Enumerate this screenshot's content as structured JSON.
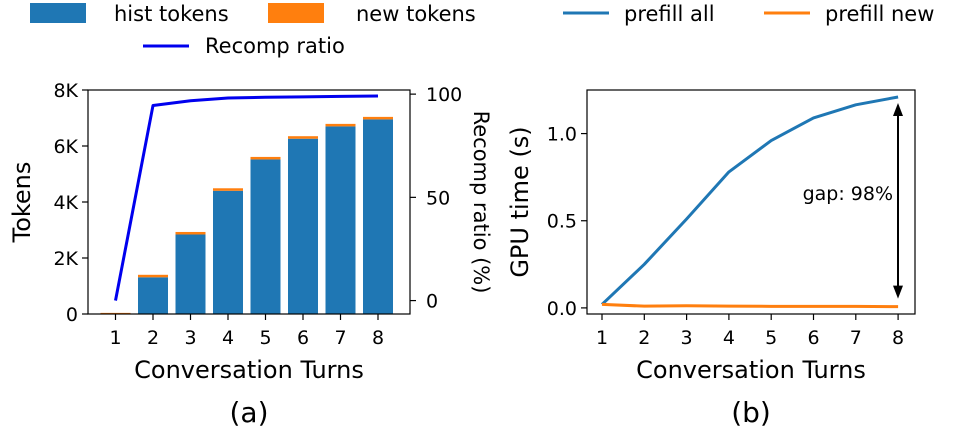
{
  "chart_data": [
    {
      "type": "bar",
      "panel_label": "(a)",
      "xlabel": "Conversation Turns",
      "ylabel": "Tokens",
      "y2label": "Recomp ratio (%)",
      "categories": [
        "1",
        "2",
        "3",
        "4",
        "5",
        "6",
        "7",
        "8"
      ],
      "ylim": [
        0,
        8000
      ],
      "yticks": [
        0,
        2000,
        4000,
        6000,
        8000
      ],
      "ytick_labels": [
        "0",
        "2K",
        "4K",
        "6K",
        "8K"
      ],
      "y2lim": [
        -6.5,
        102
      ],
      "y2ticks": [
        0,
        50,
        100
      ],
      "y2tick_labels": [
        "0",
        "50",
        "100"
      ],
      "legend_position": "top",
      "series": [
        {
          "name": "hist tokens",
          "kind": "bar",
          "color": "#1f77b4",
          "values": [
            0,
            1310,
            2840,
            4400,
            5520,
            6260,
            6700,
            6950
          ]
        },
        {
          "name": "new tokens",
          "kind": "bar-stacked",
          "color": "#ff7f0e",
          "values": [
            40,
            90,
            90,
            90,
            90,
            90,
            90,
            90
          ]
        },
        {
          "name": "Recomp ratio",
          "kind": "line",
          "axis": "right",
          "color": "#0000ee",
          "values": [
            0,
            94.5,
            96.8,
            98.1,
            98.5,
            98.7,
            98.9,
            99.1
          ]
        }
      ]
    },
    {
      "type": "line",
      "panel_label": "(b)",
      "xlabel": "Conversation Turns",
      "ylabel": "GPU time (s)",
      "categories": [
        "1",
        "2",
        "3",
        "4",
        "5",
        "6",
        "7",
        "8"
      ],
      "ylim": [
        -0.035,
        1.25
      ],
      "yticks": [
        0,
        0.5,
        1.0
      ],
      "ytick_labels": [
        "0.0",
        "0.5",
        "1.0"
      ],
      "legend_position": "top",
      "annotation": "gap: 98%",
      "series": [
        {
          "name": "prefill all",
          "color": "#1f77b4",
          "values": [
            0.02,
            0.25,
            0.51,
            0.78,
            0.96,
            1.09,
            1.165,
            1.21
          ]
        },
        {
          "name": "prefill new",
          "color": "#ff7f0e",
          "values": [
            0.02,
            0.01,
            0.012,
            0.01,
            0.009,
            0.009,
            0.009,
            0.007
          ]
        }
      ]
    }
  ]
}
